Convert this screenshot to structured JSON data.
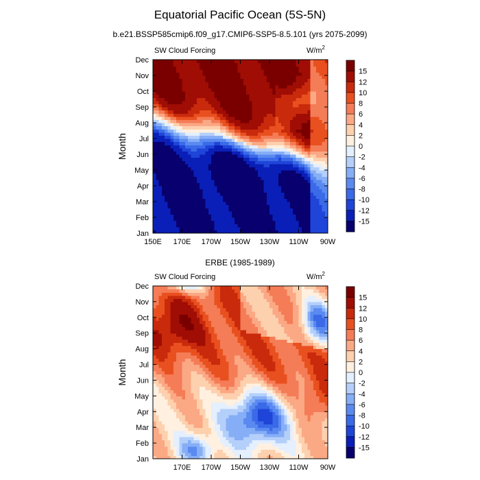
{
  "figure": {
    "title": "Equatorial Pacific Ocean (5S-5N)",
    "subtitle": "b.e21.BSSP585cmip6.f09_g17.CMIP6-SSP5-8.5.101 (yrs 2075-2099)",
    "panel2_title": "ERBE (1985-1989)"
  },
  "chart_data": [
    {
      "type": "heatmap",
      "variable_label": "SW Cloud Forcing",
      "units_label": "W/m",
      "units_exponent": "2",
      "ylabel": "Month",
      "months": [
        "Jan",
        "Feb",
        "Mar",
        "Apr",
        "May",
        "Jun",
        "Jul",
        "Aug",
        "Sep",
        "Oct",
        "Nov",
        "Dec"
      ],
      "x_ticks": [
        "150E",
        "170E",
        "170W",
        "150W",
        "130W",
        "110W",
        "90W"
      ],
      "xlim": [
        150,
        270
      ],
      "contour_levels": [
        -15,
        -12,
        -10,
        -8,
        -6,
        -4,
        -2,
        0,
        2,
        4,
        6,
        8,
        10,
        12,
        15
      ],
      "colorbar_labels": [
        "15",
        "12",
        "10",
        "8",
        "6",
        "4",
        "2",
        "0",
        "-2",
        "-4",
        "-6",
        "-8",
        "-10",
        "-12",
        "-15"
      ],
      "colors": [
        "#08006e",
        "#0a1fb8",
        "#1f44d8",
        "#3a6ae8",
        "#5a8af0",
        "#86aef6",
        "#b4cffa",
        "#e4efff",
        "#fff0e0",
        "#fdd0ae",
        "#fba884",
        "#f47c56",
        "#e9501f",
        "#c92a0c",
        "#a00d04",
        "#7a0000"
      ],
      "grid": false
    },
    {
      "type": "heatmap",
      "variable_label": "SW Cloud Forcing",
      "units_label": "W/m",
      "units_exponent": "2",
      "ylabel": "Month",
      "months": [
        "Jan",
        "Feb",
        "Mar",
        "Apr",
        "May",
        "Jun",
        "Jul",
        "Aug",
        "Sep",
        "Oct",
        "Nov",
        "Dec"
      ],
      "x_ticks": [
        "",
        "170E",
        "170W",
        "150W",
        "130W",
        "110W",
        "90W"
      ],
      "xlim": [
        150,
        270
      ],
      "contour_levels": [
        -15,
        -12,
        -10,
        -8,
        -6,
        -4,
        -2,
        0,
        2,
        4,
        6,
        8,
        10,
        12,
        15
      ],
      "colorbar_labels": [
        "15",
        "12",
        "10",
        "8",
        "6",
        "4",
        "2",
        "0",
        "-2",
        "-4",
        "-6",
        "-8",
        "-10",
        "-12",
        "-15"
      ],
      "colors": [
        "#08006e",
        "#0a1fb8",
        "#1f44d8",
        "#3a6ae8",
        "#5a8af0",
        "#86aef6",
        "#b4cffa",
        "#e4efff",
        "#fff0e0",
        "#fdd0ae",
        "#fba884",
        "#f47c56",
        "#e9501f",
        "#c92a0c",
        "#a00d04",
        "#7a0000"
      ],
      "grid": false
    }
  ]
}
